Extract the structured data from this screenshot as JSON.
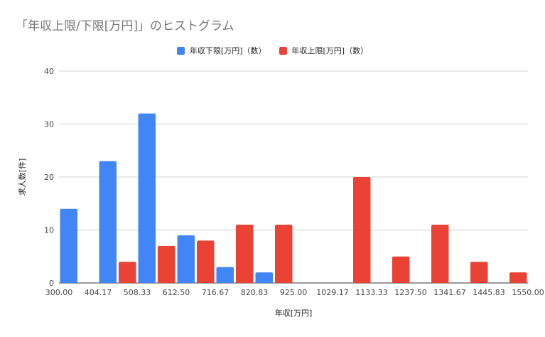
{
  "chart_data": {
    "type": "bar",
    "title": "「年収上限/下限[万円]」のヒストグラム",
    "xlabel": "年収[万円]",
    "ylabel": "求人数[件]",
    "ylim": [
      0,
      40
    ],
    "yticks": [
      "0",
      "10",
      "20",
      "30",
      "40"
    ],
    "xlim": [
      300,
      1550
    ],
    "x_tick_labels": [
      "300.00",
      "404.17",
      "508.33",
      "612.50",
      "716.67",
      "820.83",
      "925.00",
      "1029.17",
      "1133.33",
      "1237.50",
      "1341.67",
      "1445.83",
      "1550.00"
    ],
    "grid": true,
    "legend_position": "top",
    "bin_starts": [
      300,
      352.08,
      404.17,
      456.25,
      508.33,
      560.42,
      612.5,
      664.58,
      716.67,
      768.75,
      820.83,
      872.92,
      925.0,
      977.08,
      1029.17,
      1081.25,
      1133.33,
      1185.42,
      1237.5,
      1289.58,
      1341.67,
      1393.75,
      1445.83,
      1497.92
    ],
    "bin_width": 52.08,
    "series": [
      {
        "name": "年収下限[万円]（数）",
        "color": "#4285f4",
        "values": [
          14,
          0,
          23,
          0,
          32,
          0,
          9,
          0,
          3,
          0,
          2,
          0,
          0,
          0,
          0,
          0,
          0,
          0,
          0,
          0,
          0,
          0,
          0,
          0
        ]
      },
      {
        "name": "年収上限[万円]（数）",
        "color": "#ea4335",
        "values": [
          0,
          0,
          0,
          4,
          0,
          7,
          0,
          8,
          0,
          11,
          0,
          11,
          0,
          0,
          0,
          20,
          0,
          5,
          0,
          11,
          0,
          4,
          0,
          2
        ]
      }
    ]
  }
}
